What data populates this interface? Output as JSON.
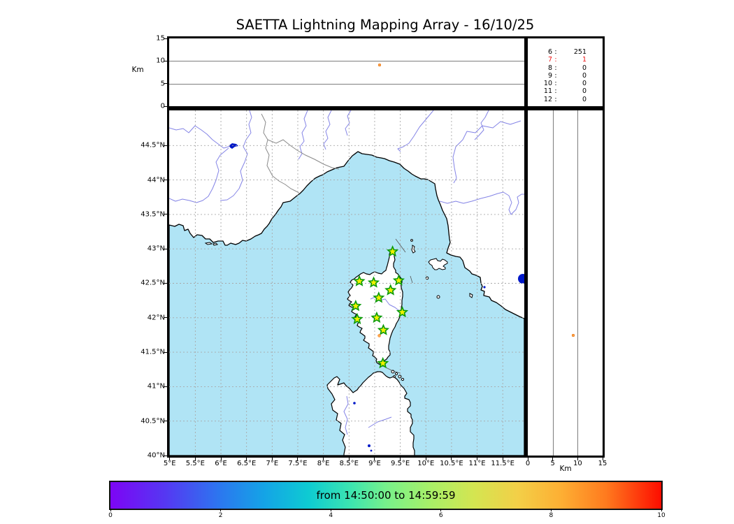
{
  "title": "SAETTA Lightning Mapping Array - 16/10/25",
  "top_panel": {
    "ylabel": "Km",
    "tick_labels": [
      "0",
      "5",
      "10",
      "15"
    ]
  },
  "stats_panel": {
    "rows": [
      {
        "label": "6",
        "value": "251",
        "highlight": false
      },
      {
        "label": "7",
        "value": "1",
        "highlight": true
      },
      {
        "label": "8",
        "value": "0",
        "highlight": false
      },
      {
        "label": "9",
        "value": "0",
        "highlight": false
      },
      {
        "label": "10",
        "value": "0",
        "highlight": false
      },
      {
        "label": "11",
        "value": "0",
        "highlight": false
      },
      {
        "label": "12",
        "value": "0",
        "highlight": false
      }
    ]
  },
  "map_panel": {
    "lat_tick_labels": [
      "44.5°N",
      "44°N",
      "43.5°N",
      "43°N",
      "42.5°N",
      "42°N",
      "41.5°N",
      "41°N",
      "40.5°N",
      "40°N"
    ],
    "lon_tick_labels": [
      "5°E",
      "5.5°E",
      "6°E",
      "6.5°E",
      "7°E",
      "7.5°E",
      "8°E",
      "8.5°E",
      "9°E",
      "9.5°E",
      "10°E",
      "10.5°E",
      "11°E",
      "11.5°E"
    ]
  },
  "right_panel": {
    "xlabel": "Km",
    "tick_labels": [
      "0",
      "5",
      "10",
      "15"
    ]
  },
  "colorbar": {
    "label": "from 14:50:00 to 14:59:59",
    "tick_labels": [
      "0",
      "2",
      "4",
      "6",
      "8",
      "10"
    ]
  },
  "colors": {
    "sea": "#b0e4f5",
    "land": "#ffffff",
    "coastline": "#000000",
    "river": "#8484e6",
    "border_line": "#8a8a8a",
    "grid": "#a8a8a8",
    "station_fill": "#f0f000",
    "station_edge": "#0a9a0a",
    "source_point": "#ffa64d",
    "lake": "#0018c8",
    "highlight_text": "#ee1111"
  },
  "chart_data": {
    "type": "scatter",
    "title": "SAETTA Lightning Mapping Array - 16/10/25",
    "map": {
      "lon_range": [
        4.99,
        11.92
      ],
      "lat_range": [
        40.0,
        45.01
      ],
      "lon_tick_values": [
        5,
        5.5,
        6,
        6.5,
        7,
        7.5,
        8,
        8.5,
        9,
        9.5,
        10,
        10.5,
        11,
        11.5
      ],
      "lat_tick_values": [
        44.5,
        44,
        43.5,
        43,
        42.5,
        42,
        41.5,
        41,
        40.5,
        40
      ],
      "stations_lonlat": [
        [
          9.35,
          42.96
        ],
        [
          8.7,
          42.53
        ],
        [
          8.98,
          42.51
        ],
        [
          9.47,
          42.54
        ],
        [
          9.31,
          42.4
        ],
        [
          9.08,
          42.29
        ],
        [
          8.63,
          42.17
        ],
        [
          9.54,
          42.08
        ],
        [
          9.04,
          42.0
        ],
        [
          8.66,
          41.98
        ],
        [
          9.17,
          41.82
        ],
        [
          9.16,
          41.34
        ]
      ]
    },
    "altitude_axis": {
      "label": "Km",
      "range_km": [
        0,
        15
      ],
      "tick_values": [
        0,
        5,
        10,
        15
      ]
    },
    "sources": [
      {
        "lon": 9.09,
        "lat": 41.74,
        "alt_km": 9.1,
        "color": "#ffa64d"
      }
    ],
    "station_level_counts": [
      {
        "level": 6,
        "count": 251,
        "highlighted": false
      },
      {
        "level": 7,
        "count": 1,
        "highlighted": true
      },
      {
        "level": 8,
        "count": 0,
        "highlighted": false
      },
      {
        "level": 9,
        "count": 0,
        "highlighted": false
      },
      {
        "level": 10,
        "count": 0,
        "highlighted": false
      },
      {
        "level": 11,
        "count": 0,
        "highlighted": false
      },
      {
        "level": 12,
        "count": 0,
        "highlighted": false
      }
    ],
    "colorbar": {
      "label": "from 14:50:00 to 14:59:59",
      "range": [
        0,
        10
      ],
      "tick_values": [
        0,
        2,
        4,
        6,
        8,
        10
      ],
      "colormap": "rainbow"
    }
  }
}
